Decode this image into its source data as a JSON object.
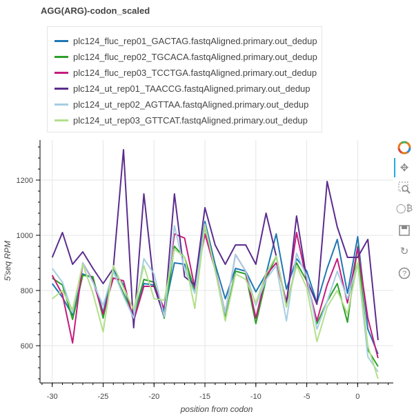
{
  "title": "AGG(ARG)-codon_scaled",
  "chart_data": {
    "type": "line",
    "title": "AGG(ARG)-codon_scaled",
    "xlabel": "position from codon",
    "ylabel": "5'seq RPM",
    "xlim": [
      -31.2,
      3.5
    ],
    "ylim": [
      465,
      1345
    ],
    "xticks": [
      -30,
      -25,
      -20,
      -15,
      -10,
      -5,
      0
    ],
    "yticks": [
      600,
      800,
      1000,
      1200
    ],
    "grid": true,
    "legend_position": "top-left",
    "x": [
      -30,
      -29,
      -28,
      -27,
      -26,
      -25,
      -24,
      -23,
      -22,
      -21,
      -20,
      -19,
      -18,
      -17,
      -16,
      -15,
      -14,
      -13,
      -12,
      -11,
      -10,
      -9,
      -8,
      -7,
      -6,
      -5,
      -4,
      -3,
      -2,
      -1,
      0,
      1,
      2
    ],
    "series": [
      {
        "name": "plc124_fluc_rep01_GACTAG.fastqAligned.primary.out_dedup",
        "color": "#1f77b4",
        "values": [
          825,
          775,
          710,
          860,
          845,
          720,
          875,
          820,
          690,
          825,
          820,
          725,
          900,
          895,
          800,
          1050,
          895,
          770,
          880,
          870,
          795,
          860,
          1005,
          805,
          915,
          870,
          755,
          880,
          985,
          790,
          995,
          660,
          570
        ]
      },
      {
        "name": "plc124_fluc_rep02_TGCACA.fastqAligned.primary.out_dedup",
        "color": "#2ca02c",
        "values": [
          845,
          820,
          695,
          855,
          850,
          700,
          870,
          790,
          705,
          840,
          830,
          700,
          960,
          920,
          800,
          1030,
          880,
          700,
          870,
          860,
          680,
          840,
          925,
          740,
          900,
          835,
          680,
          760,
          825,
          685,
          960,
          585,
          525
        ]
      },
      {
        "name": "plc124_fluc_rep03_TCCTGA.fastqAligned.primary.out_dedup",
        "color": "#c51b7d",
        "values": [
          855,
          785,
          610,
          900,
          835,
          715,
          845,
          835,
          690,
          815,
          815,
          735,
          1005,
          990,
          810,
          1005,
          875,
          720,
          930,
          870,
          700,
          855,
          900,
          760,
          1010,
          835,
          690,
          820,
          915,
          755,
          955,
          700,
          555
        ]
      },
      {
        "name": "plc124_ut_rep01_TAACCG.fastqAligned.primary.out_dedup",
        "color": "#5b2c8e",
        "values": [
          920,
          1010,
          895,
          940,
          880,
          825,
          880,
          1310,
          665,
          1150,
          815,
          705,
          1150,
          850,
          820,
          1100,
          965,
          895,
          965,
          965,
          895,
          1080,
          925,
          745,
          1070,
          840,
          750,
          1195,
          1030,
          920,
          920,
          985,
          620
        ]
      },
      {
        "name": "plc124_ut_rep02_AGTTAA.fastqAligned.primary.out_dedup",
        "color": "#a6cee3",
        "values": [
          880,
          830,
          720,
          900,
          830,
          745,
          870,
          780,
          700,
          915,
          860,
          705,
          1035,
          875,
          790,
          1040,
          870,
          720,
          930,
          870,
          745,
          840,
          890,
          690,
          935,
          850,
          660,
          760,
          870,
          770,
          900,
          560,
          505
        ]
      },
      {
        "name": "plc124_ut_rep03_GTTCAT.fastqAligned.primary.out_dedup",
        "color": "#b2df8a",
        "values": [
          770,
          800,
          730,
          895,
          790,
          650,
          890,
          810,
          730,
          890,
          770,
          765,
          950,
          920,
          735,
          1035,
          875,
          690,
          860,
          840,
          755,
          860,
          925,
          740,
          890,
          810,
          615,
          740,
          800,
          715,
          900,
          600,
          480
        ]
      }
    ]
  },
  "toolbar": {
    "icons": [
      "bokeh-logo-icon",
      "pan-icon",
      "box-zoom-icon",
      "wheel-zoom-icon",
      "save-icon",
      "reset-icon",
      "help-icon"
    ]
  }
}
